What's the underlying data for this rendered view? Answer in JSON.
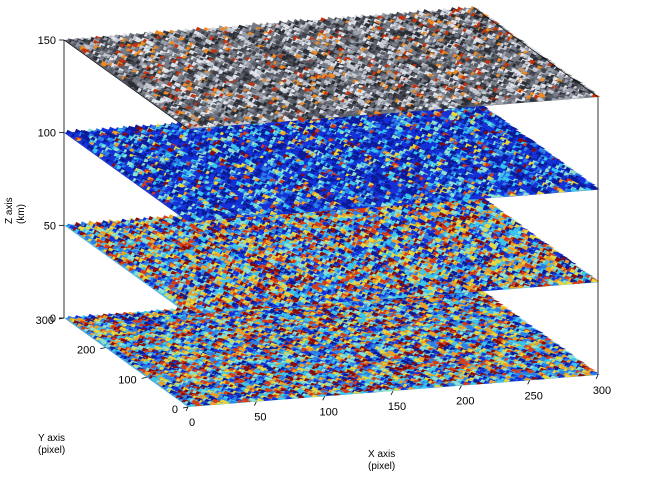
{
  "chart_data": {
    "type": "surface-3d-layers",
    "axes": {
      "x": {
        "label": "X axis",
        "unit": "(pixel)",
        "ticks": [
          0,
          50,
          100,
          150,
          200,
          250,
          300
        ],
        "range": [
          0,
          300
        ]
      },
      "y": {
        "label": "Y axis",
        "unit": "(pixel)",
        "ticks": [
          0,
          100,
          200,
          300
        ],
        "range": [
          0,
          300
        ]
      },
      "z": {
        "label": "Z axis",
        "unit": "(km)",
        "ticks": [
          0,
          50,
          100,
          150
        ],
        "range": [
          0,
          150
        ]
      }
    },
    "layers": [
      {
        "z": 0,
        "colormap": "jet",
        "background": "#4aa8d8"
      },
      {
        "z": 50,
        "colormap": "jet",
        "background": "#58b8e0"
      },
      {
        "z": 100,
        "colormap": "jet",
        "background": "#1f3bd0"
      },
      {
        "z": 150,
        "colormap": "gray",
        "background": "#5c5f68"
      }
    ],
    "palettes": {
      "jet": [
        "#0a1a9a",
        "#1430d8",
        "#2a7ee8",
        "#37c6ee",
        "#8ee0d0",
        "#e8d63a",
        "#f0a020",
        "#d83a12",
        "#8c0a06"
      ],
      "gray": [
        "#2a2c33",
        "#3f424b",
        "#5a5e68",
        "#767b86",
        "#9aa0ab",
        "#c4c9d2",
        "#e0e4ea",
        "#f08a20",
        "#c8320a"
      ]
    },
    "grid": false,
    "box": true
  }
}
